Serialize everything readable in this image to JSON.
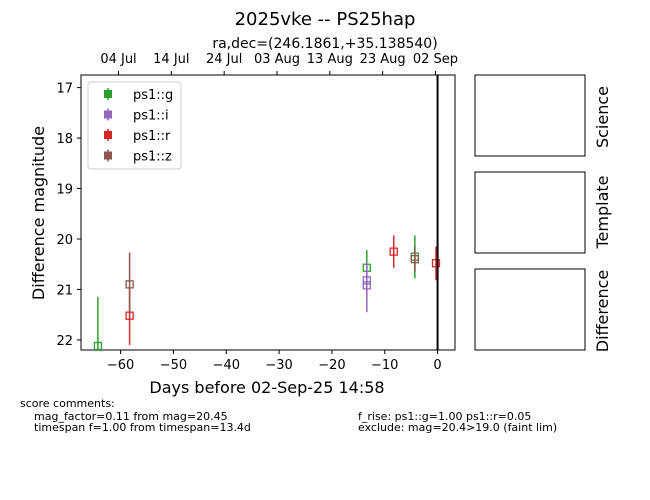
{
  "chart_data": {
    "type": "scatter",
    "title": "2025vke -- PS25hap",
    "subtitle": "ra,dec=(246.1861,+35.138540)",
    "xlabel": "Days before 02-Sep-25 14:58",
    "ylabel": "Difference magnitude",
    "xlim": [
      -67.5,
      3.3
    ],
    "ylim": [
      22.2,
      16.75
    ],
    "y_inverted": true,
    "x_ticks": [
      -60,
      -50,
      -40,
      -30,
      -20,
      -10,
      0
    ],
    "x_tick_labels": [
      "−60",
      "−50",
      "−40",
      "−30",
      "−20",
      "−10",
      "0"
    ],
    "y_ticks": [
      17,
      18,
      19,
      20,
      21,
      22
    ],
    "y_tick_labels": [
      "17",
      "18",
      "19",
      "20",
      "21",
      "22"
    ],
    "top_axis_ticks": [
      {
        "x": -60.4,
        "label": "04 Jul"
      },
      {
        "x": -50.4,
        "label": "14 Jul"
      },
      {
        "x": -40.4,
        "label": "24 Jul"
      },
      {
        "x": -30.4,
        "label": "03 Aug"
      },
      {
        "x": -20.4,
        "label": "13 Aug"
      },
      {
        "x": -10.4,
        "label": "23 Aug"
      },
      {
        "x": -0.4,
        "label": "02 Sep"
      }
    ],
    "vertical_line_x": 0,
    "grid": false,
    "legend_position": "top-left",
    "series": [
      {
        "name": "ps1::g",
        "color": "#2ca02c",
        "marker": "open-square",
        "points": [
          {
            "x": -64.3,
            "y": 22.12,
            "err_low": 21.15,
            "err_high": 22.2
          },
          {
            "x": -13.4,
            "y": 20.57,
            "err_low": 20.22,
            "err_high": 20.92
          },
          {
            "x": -4.3,
            "y": 20.35,
            "err_low": 19.93,
            "err_high": 20.78
          }
        ]
      },
      {
        "name": "ps1::i",
        "color": "#9467bd",
        "marker": "open-square",
        "points": [
          {
            "x": -13.4,
            "y": 20.82,
            "err_low": 20.5,
            "err_high": 21.15
          },
          {
            "x": -13.4,
            "y": 20.92,
            "err_low": 20.45,
            "err_high": 21.45
          }
        ]
      },
      {
        "name": "ps1::r",
        "color": "#d62728",
        "marker": "open-square",
        "points": [
          {
            "x": -58.3,
            "y": 21.52,
            "err_low": 20.95,
            "err_high": 22.1
          },
          {
            "x": -8.3,
            "y": 20.25,
            "err_low": 19.93,
            "err_high": 20.57
          },
          {
            "x": -0.3,
            "y": 20.48,
            "err_low": 20.15,
            "err_high": 20.82
          }
        ]
      },
      {
        "name": "ps1::z",
        "color": "#8c564b",
        "marker": "open-square",
        "points": [
          {
            "x": -58.3,
            "y": 20.9,
            "err_low": 20.27,
            "err_high": 21.45
          },
          {
            "x": -4.3,
            "y": 20.4,
            "err_low": 20.15,
            "err_high": 20.65
          }
        ]
      }
    ]
  },
  "panels": {
    "science": "Science",
    "template": "Template",
    "difference": "Difference"
  },
  "comments": {
    "heading": "score comments:",
    "left_1": "mag_factor=0.11 from mag=20.45",
    "left_2": "timespan f=1.00 from timespan=13.4d",
    "right_1": "f_rise: ps1::g=1.00 ps1::r=0.05",
    "right_2": "exclude: mag=20.4>19.0 (faint lim)"
  }
}
